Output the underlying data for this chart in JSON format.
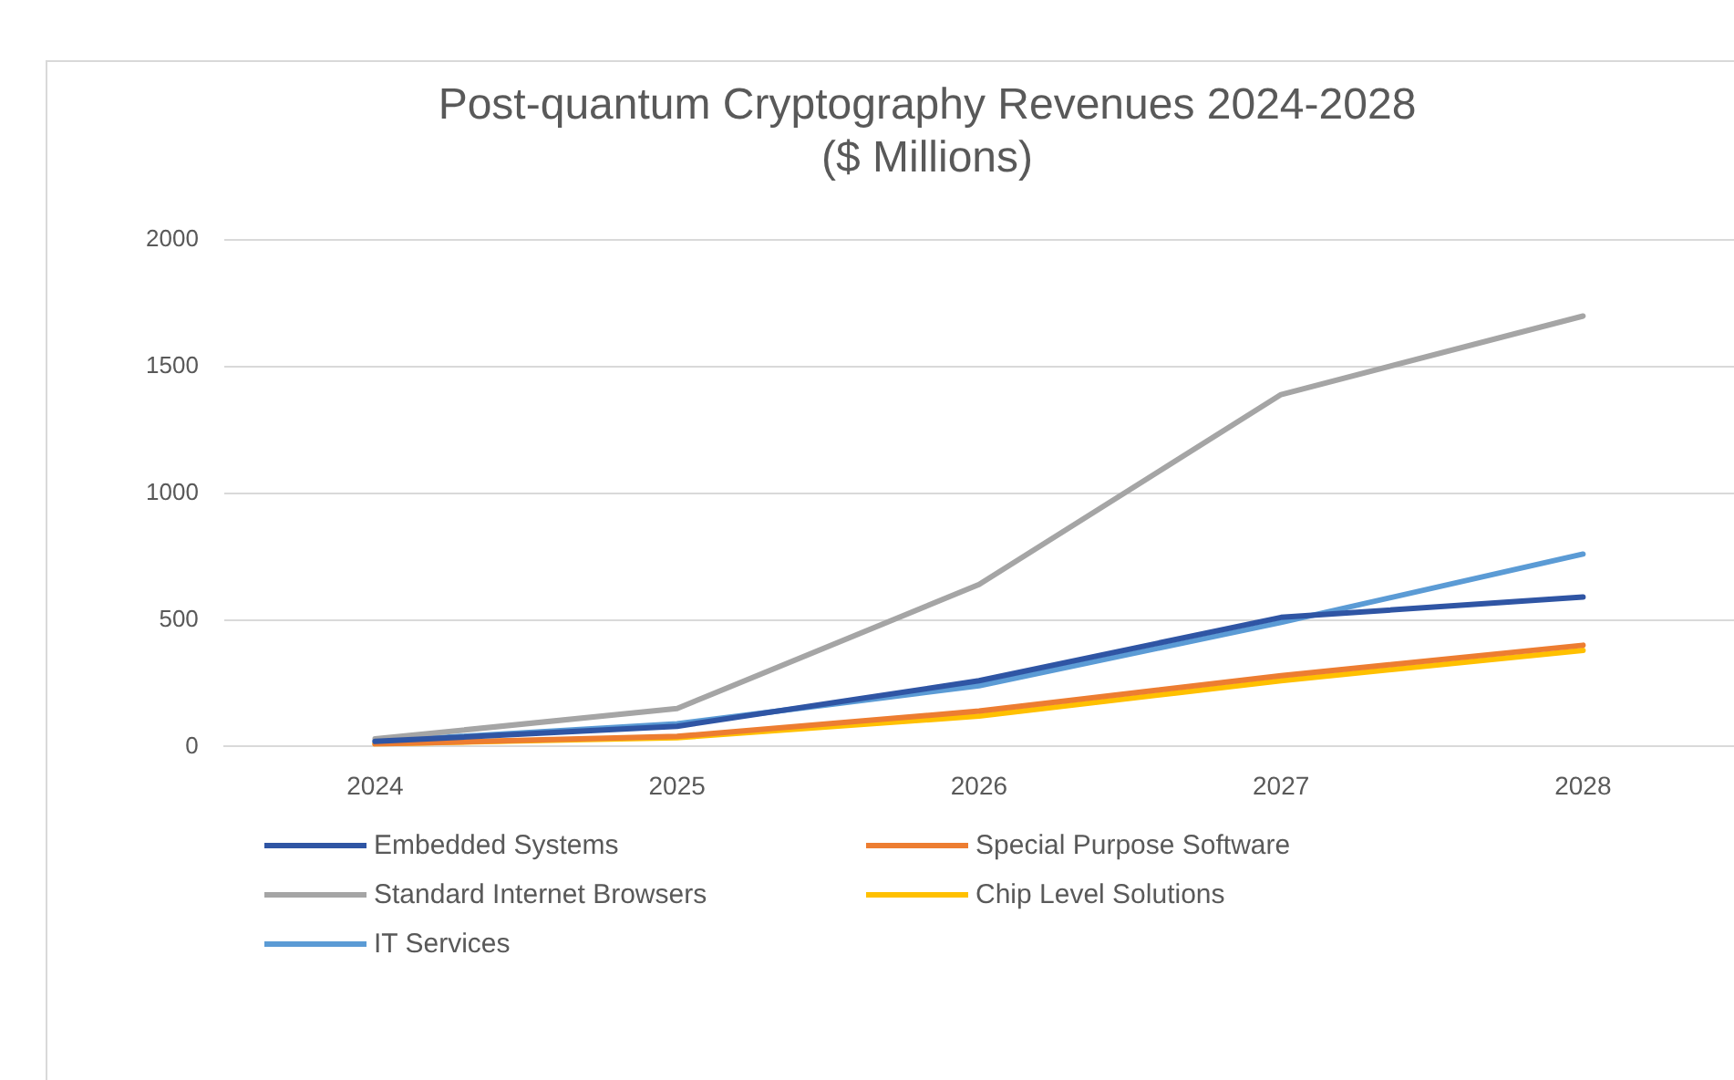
{
  "chart_data": {
    "type": "line",
    "title": "Post-quantum Cryptography Revenues 2024-2028\n($ Millions)",
    "categories": [
      "2024",
      "2025",
      "2026",
      "2027",
      "2028"
    ],
    "series": [
      {
        "name": "Embedded Systems",
        "color": "#2f55a4",
        "values": [
          20,
          80,
          260,
          510,
          590
        ]
      },
      {
        "name": "Special Purpose Software",
        "color": "#ed7d31",
        "values": [
          10,
          40,
          140,
          280,
          400
        ]
      },
      {
        "name": "Standard Internet Browsers",
        "color": "#a5a5a5",
        "values": [
          30,
          150,
          640,
          1390,
          1700
        ]
      },
      {
        "name": "Chip Level Solutions",
        "color": "#ffc000",
        "values": [
          10,
          35,
          120,
          260,
          380
        ]
      },
      {
        "name": "IT Services",
        "color": "#5b9bd5",
        "values": [
          20,
          90,
          240,
          490,
          760
        ]
      }
    ],
    "ylim": [
      0,
      2000
    ],
    "yticks": [
      0,
      500,
      1000,
      1500,
      2000
    ],
    "grid": "y",
    "legend": "bottom",
    "marker": "none",
    "line_style": "solid"
  }
}
